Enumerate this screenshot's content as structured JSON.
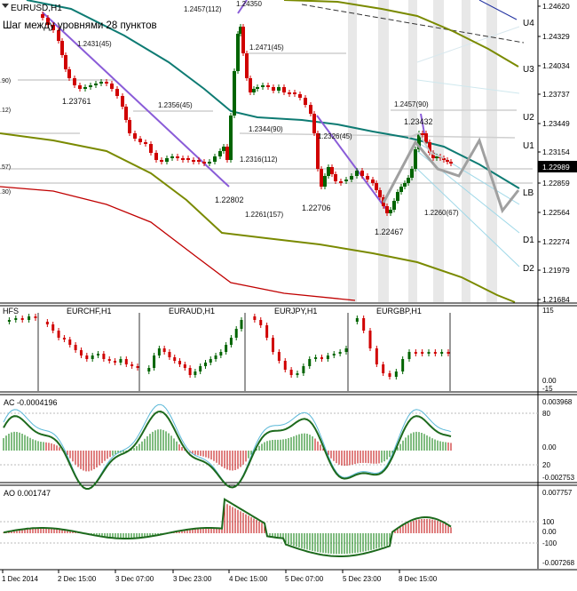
{
  "main": {
    "symbol": "EURUSD,H1",
    "title_text": "Шаг между уровнями 28 пунктов",
    "price_labels": [
      "1.24620",
      "1.24329",
      "1.24034",
      "1.23737",
      "1.23449",
      "1.23154",
      "1.22989",
      "1.22859",
      "1.22564",
      "1.22274",
      "1.21979",
      "1.21684"
    ],
    "current_price": "1.22989",
    "levels": [
      "U4",
      "U3",
      "U2",
      "U1",
      "LB",
      "D1",
      "D2"
    ],
    "left_cut_labels": [
      ".90)",
      ".12)",
      ".57)",
      ".30)"
    ],
    "chart_labels": {
      "top_high": "1.2457(112)",
      "top_high_price": "1.24350",
      "l1": "1.2431(45)",
      "l2": "1.23761",
      "l3": "1.2356(45)",
      "l4": "1.2471(45)",
      "l5": "1.2344(90)",
      "l6": "1.2316(112)",
      "l7": "1.22802",
      "l8": "1.2261(157)",
      "l9": "1.22706",
      "l10": "1.2326(45)",
      "l11": "1.2457(90)",
      "l12": "1.23432",
      "l13": "1.22467",
      "l14": "1.2260(67)"
    }
  },
  "mini": {
    "symbols": [
      "HFS",
      "EURCHF,H1",
      "EURAUD,H1",
      "EURJPY,H1",
      "EURGBP,H1"
    ],
    "scale": [
      "115",
      "0.00",
      "-15"
    ]
  },
  "ac": {
    "title": "AC -0.0004196",
    "scale": [
      "0.003968",
      "80",
      "0.00",
      "20",
      "-0.002753"
    ]
  },
  "ao": {
    "title": "AO 0.001747",
    "scale": [
      "0.007757",
      "100",
      "0.00",
      "-100",
      "-0.007268"
    ]
  },
  "xaxis": [
    "1 Dec 2014",
    "2 Dec 15:00",
    "3 Dec 07:00",
    "3 Dec 23:00",
    "4 Dec 15:00",
    "5 Dec 07:00",
    "5 Dec 23:00",
    "8 Dec 15:00"
  ],
  "colors": {
    "teal": "#0e7b73",
    "olive": "#7a8a00",
    "red": "#c00000",
    "purple": "#8a5cd8",
    "green": "#007a00",
    "bar_red": "#d00000",
    "grid_band": "#e6e6e6"
  }
}
